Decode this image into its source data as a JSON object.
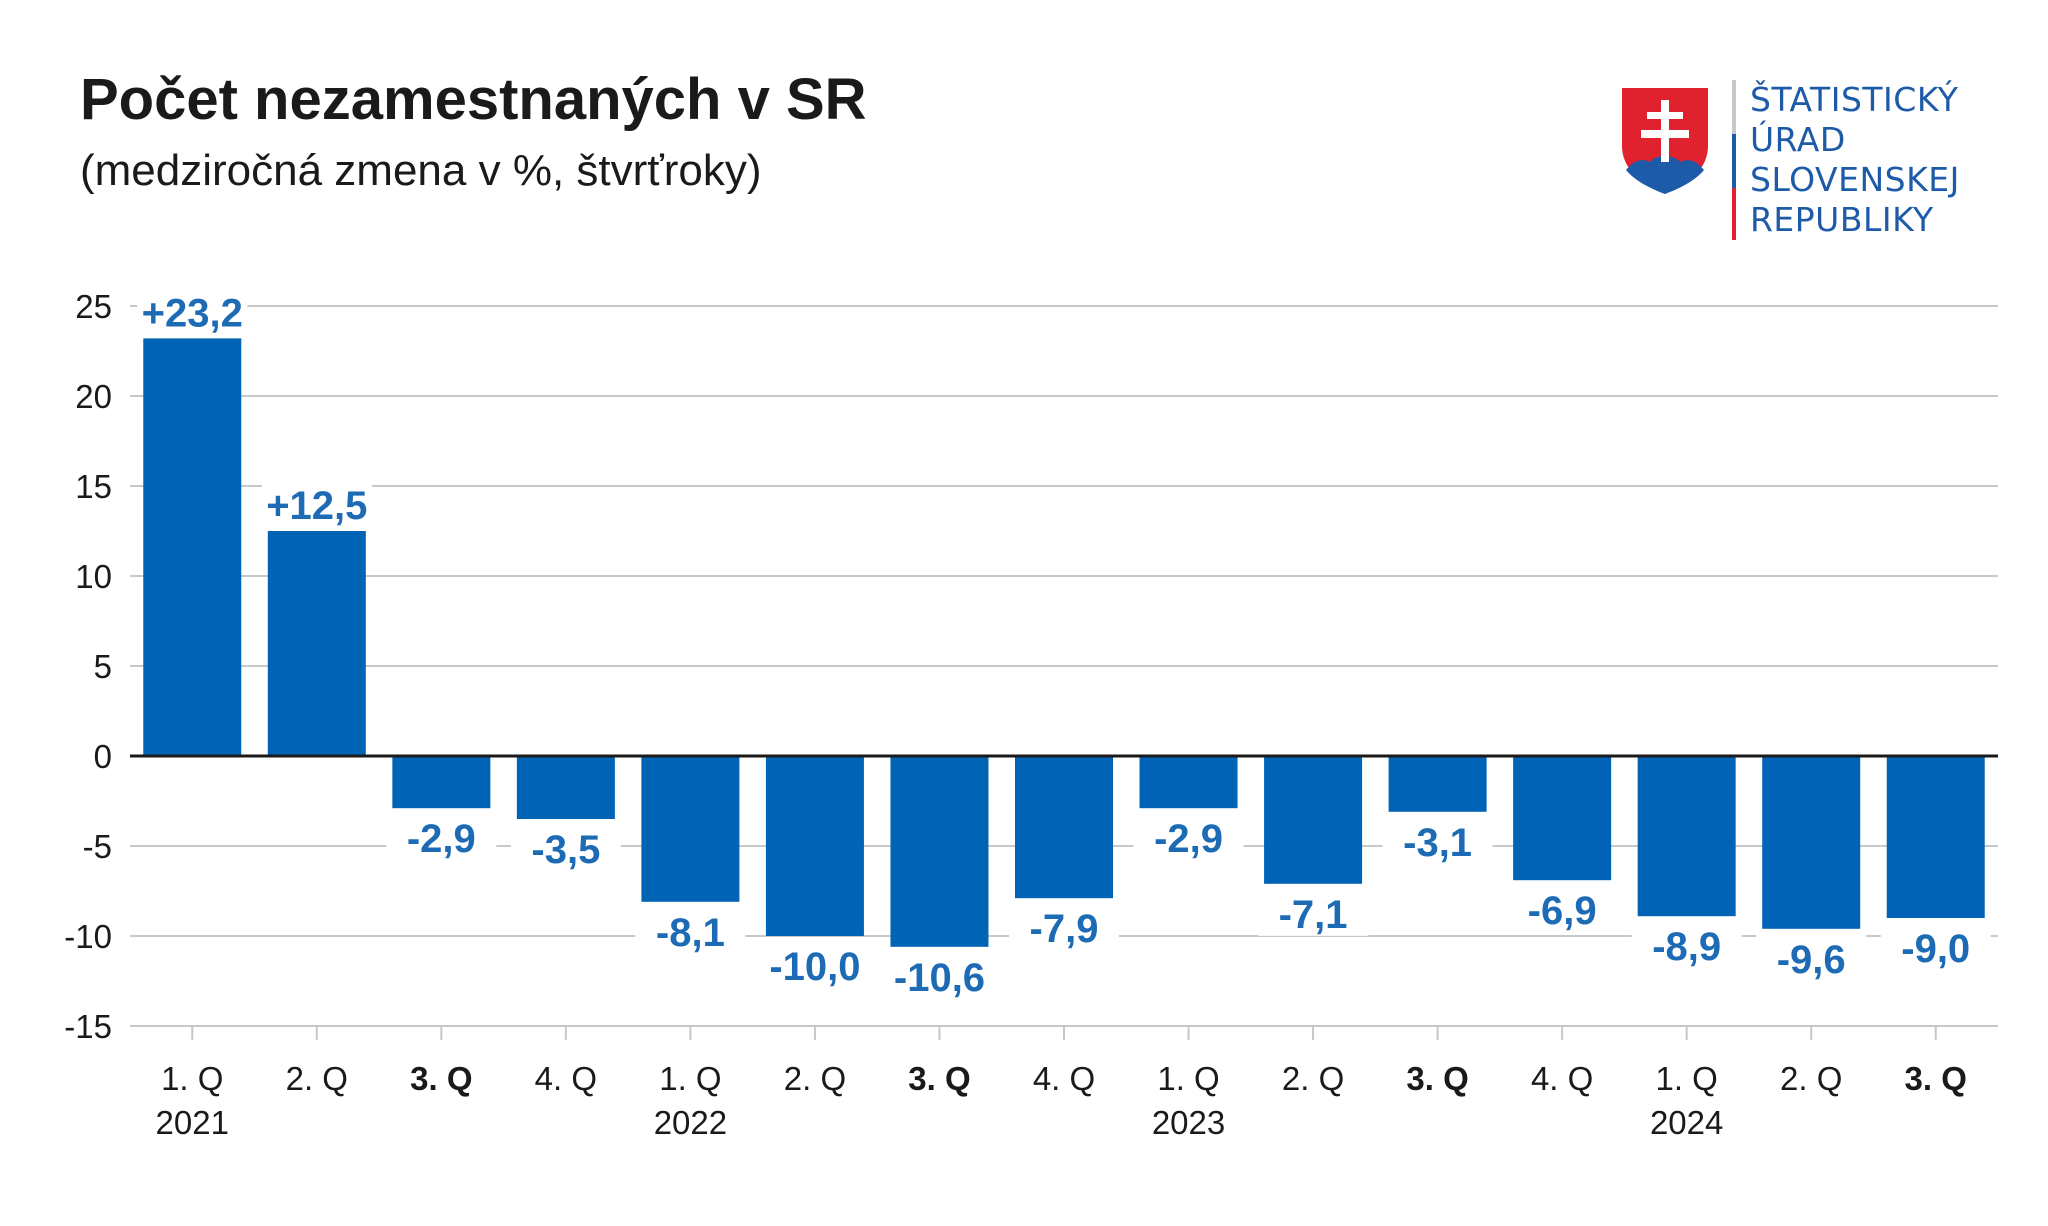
{
  "header": {
    "title": "Počet nezamestnaných v SR",
    "subtitle": "(medziročná zmena v %, štvrťroky)"
  },
  "logo": {
    "lines": [
      "ŠTATISTICKÝ",
      "ÚRAD",
      "SLOVENSKEJ",
      "REPUBLIKY"
    ],
    "colors": {
      "shield_red": "#e0222e",
      "shield_blue": "#1d5aa8",
      "cross": "#ffffff",
      "text": "#1d5aa8"
    }
  },
  "colors": {
    "bar": "#0063b5",
    "label": "#1d6bb5",
    "grid": "#c8c8c8",
    "axis": "#1a1a1a"
  },
  "chart_data": {
    "type": "bar",
    "title": "Počet nezamestnaných v SR",
    "subtitle": "(medziročná zmena v %, štvrťroky)",
    "ylim": [
      -15,
      25
    ],
    "yticks": [
      25,
      20,
      15,
      10,
      5,
      0,
      -5,
      -10,
      -15
    ],
    "grid": true,
    "categories": [
      "1. Q",
      "2. Q",
      "3. Q",
      "4. Q",
      "1. Q",
      "2. Q",
      "3. Q",
      "4. Q",
      "1. Q",
      "2. Q",
      "3. Q",
      "4. Q",
      "1. Q",
      "2. Q",
      "3. Q"
    ],
    "category_bold": [
      false,
      false,
      true,
      false,
      false,
      false,
      true,
      false,
      false,
      false,
      true,
      false,
      false,
      false,
      true
    ],
    "years": [
      {
        "label": "2021",
        "index": 0
      },
      {
        "label": "2022",
        "index": 4
      },
      {
        "label": "2023",
        "index": 8
      },
      {
        "label": "2024",
        "index": 12
      }
    ],
    "values": [
      23.2,
      12.5,
      -2.9,
      -3.5,
      -8.1,
      -10.0,
      -10.6,
      -7.9,
      -2.9,
      -7.1,
      -3.1,
      -6.9,
      -8.9,
      -9.6,
      -9.0
    ],
    "value_labels": [
      "+23,2",
      "+12,5",
      "-2,9",
      "-3,5",
      "-8,1",
      "-10,0",
      "-10,6",
      "-7,9",
      "-2,9",
      "-7,1",
      "-3,1",
      "-6,9",
      "-8,9",
      "-9,6",
      "-9,0"
    ]
  }
}
